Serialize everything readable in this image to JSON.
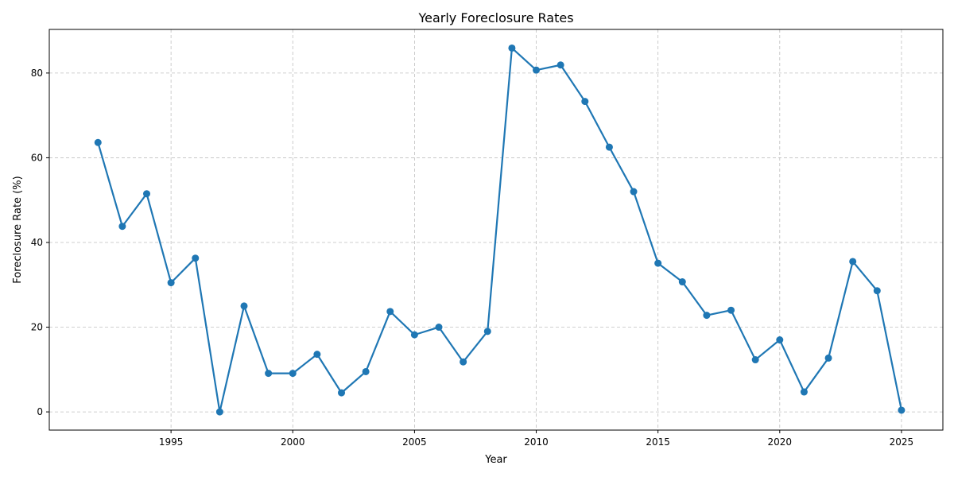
{
  "chart_data": {
    "type": "line",
    "title": "Yearly Foreclosure Rates",
    "xlabel": "Year",
    "ylabel": "Foreclosure Rate (%)",
    "xlim": [
      1990,
      2026.7
    ],
    "ylim": [
      -4.3,
      90.3
    ],
    "x_ticks": [
      1995,
      2000,
      2005,
      2010,
      2015,
      2020,
      2025
    ],
    "y_ticks": [
      0,
      20,
      40,
      60,
      80
    ],
    "grid": true,
    "series": [
      {
        "color": "#1f77b4",
        "x": [
          1992,
          1993,
          1994,
          1995,
          1996,
          1997,
          1998,
          1999,
          2000,
          2001,
          2002,
          2003,
          2004,
          2005,
          2006,
          2007,
          2008,
          2009,
          2010,
          2011,
          2012,
          2013,
          2014,
          2015,
          2016,
          2017,
          2018,
          2019,
          2020,
          2021,
          2022,
          2023,
          2024,
          2025
        ],
        "y": [
          63.6,
          43.8,
          51.5,
          30.5,
          36.3,
          0.0,
          25.0,
          9.1,
          9.1,
          13.6,
          4.5,
          9.5,
          23.7,
          18.2,
          20.0,
          11.8,
          19.0,
          85.9,
          80.7,
          81.9,
          73.3,
          62.5,
          52.0,
          35.1,
          30.7,
          22.8,
          24.0,
          12.3,
          17.0,
          4.7,
          12.7,
          35.5,
          28.6,
          0.4
        ]
      }
    ]
  }
}
